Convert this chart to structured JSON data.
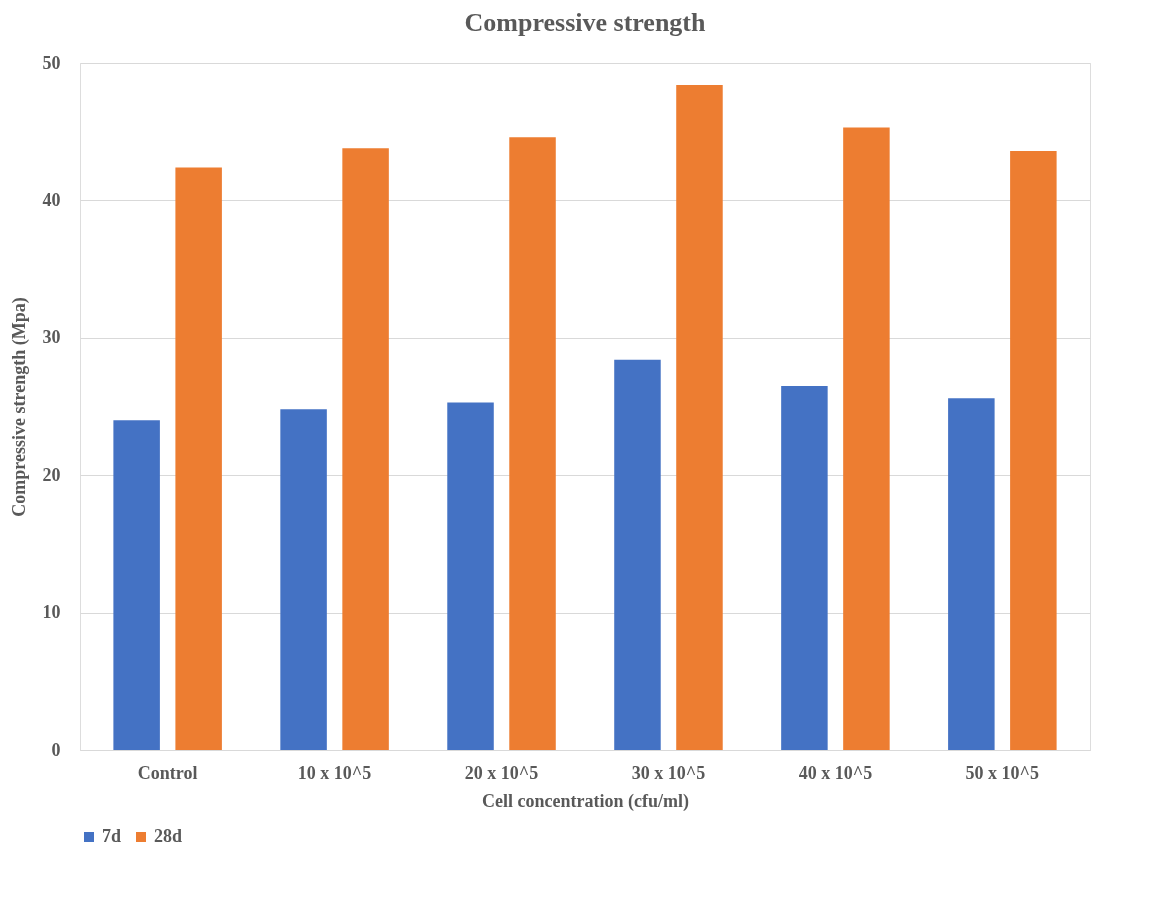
{
  "chart_data": {
    "type": "bar",
    "title": "Compressive strength",
    "xlabel": "Cell concentration (cfu/ml)",
    "ylabel": "Compressive strength (Mpa)",
    "categories": [
      "Control",
      "10 x 10^5",
      "20 x 10^5",
      "30 x 10^5",
      "40 x 10^5",
      "50 x 10^5"
    ],
    "series": [
      {
        "name": "7d",
        "color": "#4472c4",
        "values": [
          24.0,
          24.8,
          25.3,
          28.4,
          26.5,
          25.6
        ]
      },
      {
        "name": "28d",
        "color": "#ed7d31",
        "values": [
          42.4,
          43.8,
          44.6,
          48.4,
          45.3,
          43.6
        ]
      }
    ],
    "ylim": [
      0,
      50
    ],
    "yticks": [
      0,
      10,
      20,
      30,
      40,
      50
    ],
    "grid": "y",
    "legend": "bottom"
  }
}
